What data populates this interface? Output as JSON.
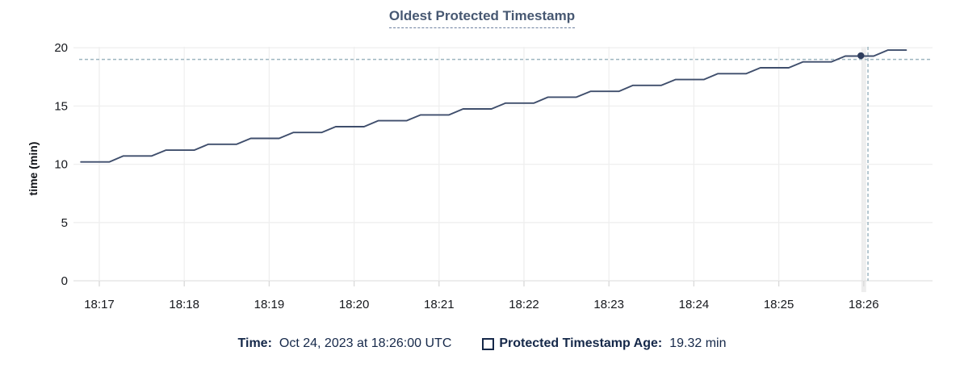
{
  "title": "Oldest Protected Timestamp",
  "y_axis_label": "time (min)",
  "legend": {
    "time_label": "Time:",
    "time_value": "Oct 24, 2023 at 18:26:00 UTC",
    "series_label": "Protected Timestamp Age:",
    "series_value": "19.32 min",
    "swatch_shape": "empty-square"
  },
  "colors": {
    "background": "#ffffff",
    "title": "#475872",
    "legend_text": "#152849",
    "series_line": "#3f4e6c",
    "highlight_dot": "#2e3d5d",
    "crosshair": "#9db5c0",
    "grid": "#efefef",
    "axis_line": "#e2e2e2",
    "tick_stub": "#d9d9d9",
    "tick_text": "#16181d",
    "hover_band": "#ededed"
  },
  "chart_data": {
    "type": "line",
    "title": "Oldest Protected Timestamp",
    "xlabel": "",
    "ylabel": "time (min)",
    "ylim": [
      0,
      20
    ],
    "y_ticks": [
      0,
      5,
      10,
      15,
      20
    ],
    "x_ticks": [
      {
        "label": "18:17",
        "sec": 0
      },
      {
        "label": "18:18",
        "sec": 60
      },
      {
        "label": "18:19",
        "sec": 120
      },
      {
        "label": "18:20",
        "sec": 180
      },
      {
        "label": "18:21",
        "sec": 240
      },
      {
        "label": "18:22",
        "sec": 300
      },
      {
        "label": "18:23",
        "sec": 360
      },
      {
        "label": "18:24",
        "sec": 420
      },
      {
        "label": "18:25",
        "sec": 480
      },
      {
        "label": "18:26",
        "sec": 540
      }
    ],
    "x_range_sec": [
      -13,
      589
    ],
    "grid": true,
    "legend_position": "bottom",
    "series": [
      {
        "name": "Protected Timestamp Age",
        "unit": "min",
        "points_sec_min": [
          [
            -13,
            10.2
          ],
          [
            7,
            10.2
          ],
          [
            17,
            10.71
          ],
          [
            37,
            10.71
          ],
          [
            47,
            11.21
          ],
          [
            67,
            11.21
          ],
          [
            77,
            11.72
          ],
          [
            97,
            11.72
          ],
          [
            107,
            12.22
          ],
          [
            127,
            12.22
          ],
          [
            137,
            12.73
          ],
          [
            157,
            12.73
          ],
          [
            167,
            13.23
          ],
          [
            187,
            13.23
          ],
          [
            197,
            13.74
          ],
          [
            217,
            13.74
          ],
          [
            227,
            14.24
          ],
          [
            247,
            14.24
          ],
          [
            257,
            14.75
          ],
          [
            277,
            14.75
          ],
          [
            287,
            15.25
          ],
          [
            307,
            15.25
          ],
          [
            317,
            15.76
          ],
          [
            337,
            15.76
          ],
          [
            347,
            16.26
          ],
          [
            367,
            16.26
          ],
          [
            377,
            16.77
          ],
          [
            397,
            16.77
          ],
          [
            407,
            17.27
          ],
          [
            427,
            17.27
          ],
          [
            437,
            17.78
          ],
          [
            457,
            17.78
          ],
          [
            467,
            18.28
          ],
          [
            487,
            18.28
          ],
          [
            497,
            18.79
          ],
          [
            517,
            18.79
          ],
          [
            527,
            19.29
          ],
          [
            547,
            19.29
          ],
          [
            557,
            19.8
          ],
          [
            570,
            19.8
          ]
        ]
      }
    ],
    "highlight": {
      "time_label": "18:26:00",
      "point_sec": 538,
      "point_value": 19.32,
      "crosshair_sec": 543,
      "crosshair_value": 19.0,
      "band_sec": 540
    }
  }
}
